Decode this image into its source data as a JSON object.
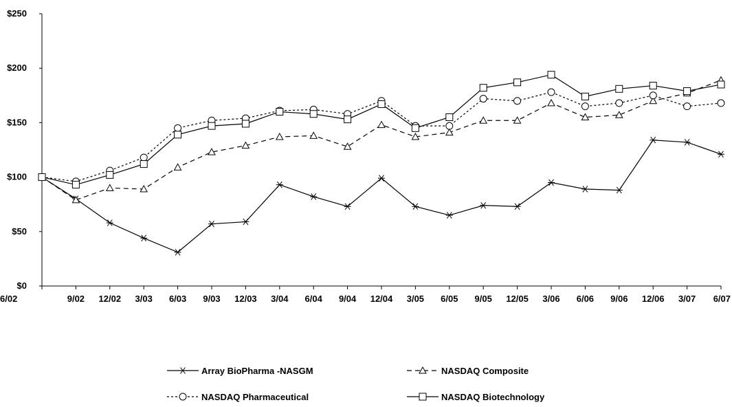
{
  "chart_data": {
    "type": "line",
    "title": "",
    "xlabel": "",
    "ylabel": "",
    "categories": [
      "6/02",
      "9/02",
      "12/02",
      "3/03",
      "6/03",
      "9/03",
      "12/03",
      "3/04",
      "6/04",
      "9/04",
      "12/04",
      "3/05",
      "6/05",
      "9/05",
      "12/05",
      "3/06",
      "6/06",
      "9/06",
      "12/06",
      "3/07",
      "6/07"
    ],
    "ylim": [
      0,
      250
    ],
    "yticks": [
      0,
      50,
      100,
      150,
      200,
      250
    ],
    "ytick_labels": [
      "$0",
      "$50",
      "$100",
      "$150",
      "$200",
      "$250"
    ],
    "grid": false,
    "legend_position": "bottom",
    "series": [
      {
        "name": "Array BioPharma -NASGM",
        "marker": "asterisk",
        "dash": "solid",
        "color": "#000000",
        "values": [
          100,
          80,
          58,
          44,
          31,
          57,
          59,
          93,
          82,
          73,
          99,
          73,
          65,
          74,
          73,
          95,
          89,
          88,
          134,
          132,
          121
        ]
      },
      {
        "name": "NASDAQ Composite",
        "marker": "triangle",
        "dash": "dashed",
        "color": "#000000",
        "values": [
          100,
          79,
          90,
          89,
          109,
          123,
          129,
          137,
          138,
          128,
          148,
          137,
          141,
          152,
          152,
          168,
          155,
          157,
          170,
          177,
          189
        ]
      },
      {
        "name": "NASDAQ Pharmaceutical",
        "marker": "circle",
        "dash": "dotted",
        "color": "#000000",
        "values": [
          100,
          96,
          106,
          118,
          145,
          152,
          154,
          161,
          162,
          158,
          170,
          147,
          147,
          172,
          170,
          178,
          165,
          168,
          175,
          165,
          168
        ]
      },
      {
        "name": "NASDAQ Biotechnology",
        "marker": "square",
        "dash": "solid",
        "color": "#000000",
        "values": [
          100,
          93,
          102,
          112,
          139,
          147,
          149,
          160,
          158,
          153,
          167,
          145,
          155,
          182,
          187,
          194,
          174,
          181,
          184,
          179,
          185
        ]
      }
    ]
  }
}
